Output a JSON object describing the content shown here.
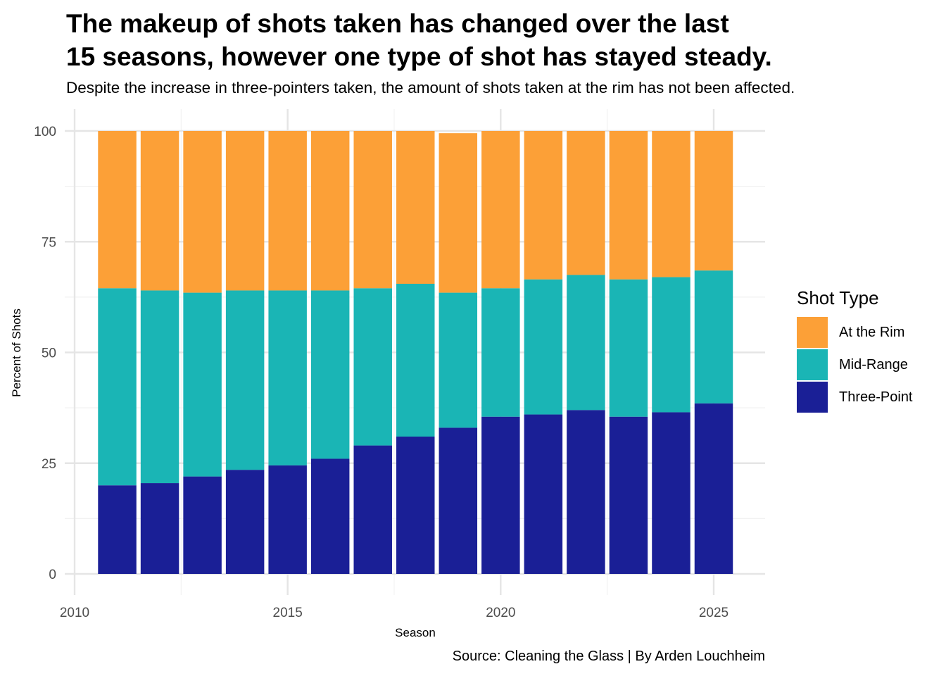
{
  "title_line1": "The makeup of shots taken has changed over the last",
  "title_line2": "15 seasons, however one type of shot has stayed steady.",
  "subtitle": "Despite the increase in three-pointers taken, the amount of shots taken at the rim has not been affected.",
  "caption": "Source: Cleaning the Glass | By Arden Louchheim",
  "legend_title": "Shot Type",
  "chart_data": {
    "type": "bar",
    "stacked": true,
    "xlabel": "Season",
    "ylabel": "Percent of Shots",
    "x": [
      2011,
      2012,
      2013,
      2014,
      2015,
      2016,
      2017,
      2018,
      2019,
      2020,
      2021,
      2022,
      2023,
      2024,
      2025
    ],
    "xlim": [
      2010,
      2026
    ],
    "ylim": [
      0,
      100
    ],
    "x_ticks": [
      2010,
      2015,
      2020,
      2025
    ],
    "y_ticks": [
      0,
      25,
      50,
      75,
      100
    ],
    "grid": true,
    "legend_position": "right",
    "series": [
      {
        "name": "Three-Point",
        "color": "#1a1f96",
        "values": [
          20.0,
          20.5,
          22.0,
          23.5,
          24.5,
          26.0,
          29.0,
          31.0,
          33.0,
          35.5,
          36.0,
          37.0,
          35.5,
          36.5,
          38.5
        ]
      },
      {
        "name": "Mid-Range",
        "color": "#1ab5b5",
        "values": [
          44.5,
          43.5,
          41.5,
          40.5,
          39.5,
          38.0,
          35.5,
          34.5,
          30.5,
          29.0,
          30.5,
          30.5,
          31.0,
          30.5,
          30.0
        ]
      },
      {
        "name": "At the Rim",
        "color": "#fca037",
        "values": [
          35.5,
          36.0,
          36.5,
          36.0,
          36.0,
          36.0,
          35.5,
          34.5,
          36.0,
          35.5,
          33.5,
          32.5,
          33.5,
          33.0,
          31.5
        ]
      }
    ]
  }
}
